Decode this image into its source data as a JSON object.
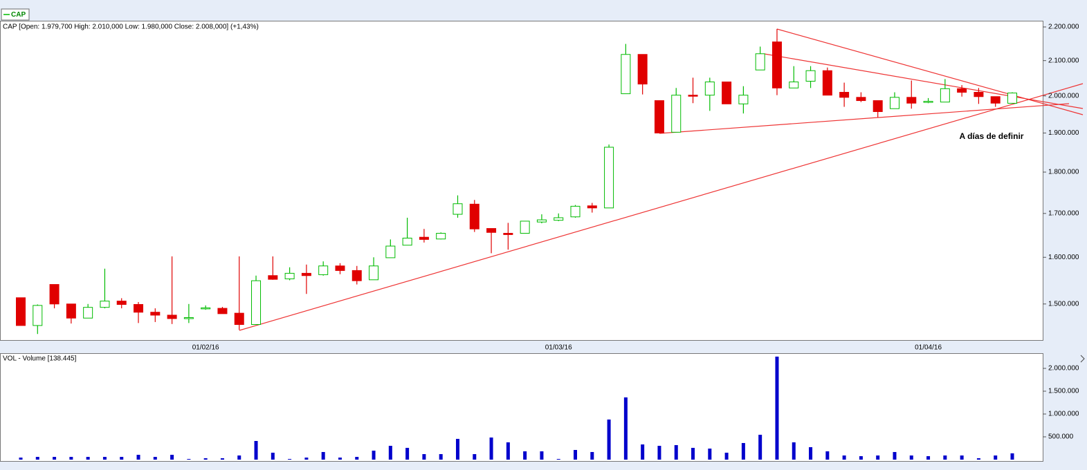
{
  "chart_data": [
    {
      "type": "candlestick",
      "name": "CAP",
      "title": "CAP [Open: 1.979,700  High: 2.010,000  Low: 1.980,000  Close: 2.008,000]  (+1,43%)",
      "annotation": "A días de definir",
      "categories": [
        null,
        null,
        null,
        null,
        null,
        null,
        null,
        null,
        null,
        null,
        null,
        "01/02/16",
        null,
        null,
        null,
        null,
        null,
        null,
        null,
        null,
        null,
        null,
        null,
        null,
        null,
        null,
        null,
        null,
        null,
        null,
        null,
        null,
        "01/03/16",
        null,
        null,
        null,
        null,
        null,
        null,
        null,
        null,
        null,
        null,
        null,
        null,
        null,
        null,
        null,
        null,
        null,
        null,
        null,
        null,
        null,
        "01/04/16",
        null,
        null,
        null,
        null,
        null
      ],
      "open": [
        1513000,
        1456000,
        1541000,
        1500000,
        1471000,
        1493000,
        1506000,
        1499000,
        1483000,
        1477000,
        1471000,
        1491000,
        1491000,
        1481000,
        1458000,
        1560000,
        1553000,
        1565000,
        1562000,
        1581000,
        1571000,
        1551000,
        1599000,
        1627000,
        1645000,
        1641000,
        1698000,
        1722000,
        1665000,
        1654000,
        1654000,
        1680000,
        1684000,
        1692000,
        1718000,
        1713000,
        2006000,
        2118000,
        1987000,
        1902000,
        2002000,
        2002000,
        2039000,
        1978000,
        2073000,
        2155000,
        2022000,
        2041000,
        2071000,
        2010000,
        1996000,
        1987000,
        1965000,
        1996000,
        1983000,
        1983000,
        2020000,
        2010000,
        1998000,
        1979700
      ],
      "high": [
        1513000,
        1499000,
        1541000,
        1500000,
        1500000,
        1575000,
        1512000,
        1504000,
        1491000,
        1602000,
        1500000,
        1497000,
        1494000,
        1602000,
        1560000,
        1602000,
        1578000,
        1584000,
        1591000,
        1587000,
        1581000,
        1600000,
        1640000,
        1690000,
        1664000,
        1656000,
        1743000,
        1732000,
        1665000,
        1678000,
        1682000,
        1698000,
        1700000,
        1720000,
        1725000,
        1870000,
        2149000,
        2118000,
        1987000,
        2022000,
        2051000,
        2051000,
        2039000,
        2027000,
        2141000,
        2194000,
        2084000,
        2084000,
        2080000,
        2037000,
        2010000,
        1987000,
        2010000,
        2043000,
        1994000,
        2047000,
        2030000,
        2022000,
        1998000,
        2010000
      ],
      "low": [
        1456000,
        1439000,
        1491000,
        1460000,
        1471000,
        1491000,
        1491000,
        1461000,
        1463000,
        1459000,
        1461000,
        1488000,
        1480000,
        1447000,
        1458000,
        1551000,
        1550000,
        1521000,
        1560000,
        1563000,
        1541000,
        1551000,
        1599000,
        1627000,
        1633000,
        1640000,
        1690000,
        1657000,
        1609000,
        1617000,
        1654000,
        1677000,
        1682000,
        1690000,
        1702000,
        1713000,
        2006000,
        2004000,
        1900000,
        1902000,
        1980000,
        1959000,
        1978000,
        1952000,
        2073000,
        2002000,
        2022000,
        2022000,
        2002000,
        1970000,
        1983000,
        1942000,
        1965000,
        1965000,
        1980000,
        1983000,
        1998000,
        1978000,
        1970000,
        1980000
      ],
      "close": [
        1456000,
        1497000,
        1500000,
        1471000,
        1493000,
        1506000,
        1499000,
        1483000,
        1477000,
        1470000,
        1472000,
        1492000,
        1480000,
        1458000,
        1549000,
        1552000,
        1565000,
        1560000,
        1581000,
        1571000,
        1549000,
        1581000,
        1625000,
        1643000,
        1640000,
        1654000,
        1723000,
        1664000,
        1656000,
        1651000,
        1682000,
        1685000,
        1690000,
        1717000,
        1713000,
        1863000,
        2118000,
        2033000,
        1900000,
        2002000,
        1999000,
        2039000,
        1978000,
        2002000,
        2120000,
        2022000,
        2039000,
        2071000,
        2002000,
        1996000,
        1987000,
        1957000,
        1996000,
        1980000,
        1985000,
        2020000,
        2010000,
        1998000,
        1980000,
        2008000
      ],
      "up_color": "#00bb00",
      "down_color": "#e00000",
      "log_scale": true,
      "ylim": [
        1427000,
        2219000
      ],
      "yticks": [
        {
          "value": 2200000,
          "label": "2.200.000"
        },
        {
          "value": 2100000,
          "label": "2.100.000"
        },
        {
          "value": 2000000,
          "label": "2.000.000"
        },
        {
          "value": 1900000,
          "label": "1.900.000"
        },
        {
          "value": 1800000,
          "label": "1.800.000"
        },
        {
          "value": 1700000,
          "label": "1.700.000"
        },
        {
          "value": 1600000,
          "label": "1.600.000"
        },
        {
          "value": 1500000,
          "label": "1.500.000"
        }
      ]
    },
    {
      "type": "bar",
      "title": "VOL - Volume [138.445]",
      "color": "#0000cc",
      "values": [
        45000,
        60000,
        60000,
        60000,
        60000,
        60000,
        60000,
        106000,
        60000,
        106000,
        15000,
        30000,
        30000,
        91000,
        409000,
        152000,
        15000,
        45000,
        167000,
        45000,
        60000,
        197000,
        303000,
        258000,
        121000,
        121000,
        455000,
        121000,
        485000,
        379000,
        182000,
        182000,
        15000,
        212000,
        167000,
        879000,
        1364000,
        333000,
        303000,
        318000,
        258000,
        242000,
        152000,
        364000,
        545000,
        2258000,
        379000,
        273000,
        182000,
        91000,
        76000,
        91000,
        167000,
        91000,
        76000,
        91000,
        91000,
        30000,
        91000,
        138445
      ],
      "ylim": [
        0,
        2333000
      ],
      "yticks": [
        {
          "value": 500000,
          "label": "500.000"
        },
        {
          "value": 1000000,
          "label": "1.000.000"
        },
        {
          "value": 1500000,
          "label": "1.500.000"
        },
        {
          "value": 2000000,
          "label": "2.000.000"
        }
      ]
    }
  ]
}
